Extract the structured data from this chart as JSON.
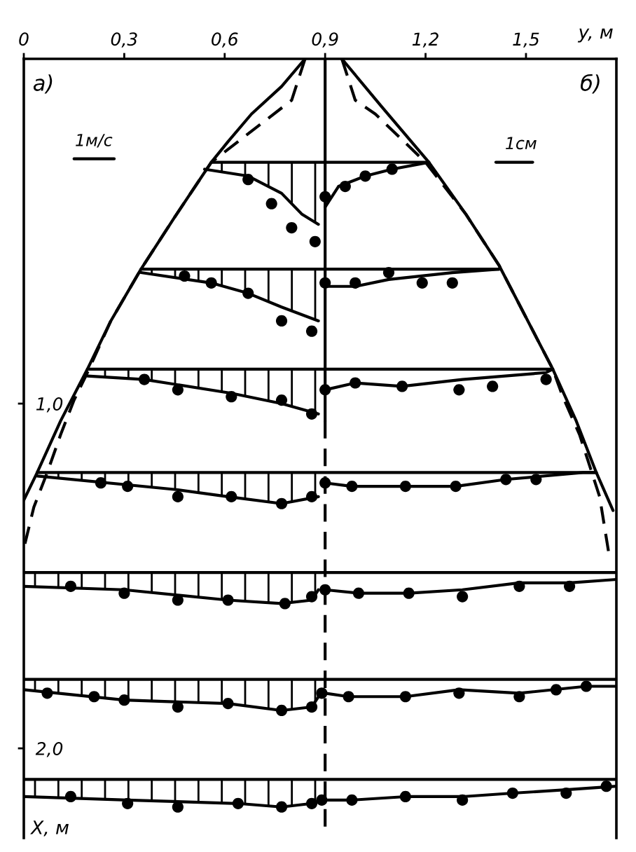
{
  "chart_data": {
    "type": "line",
    "xlabel": "y, м",
    "ylabel": "X, м",
    "xlim": [
      0,
      1.77
    ],
    "ylim": [
      2.26,
      0
    ],
    "xticks": [
      0,
      {
        "value": 0.3,
        "label": "0,3"
      },
      {
        "value": 0.6,
        "label": "0,6"
      },
      {
        "value": 0.9,
        "label": "0,9"
      },
      {
        "value": 1.2,
        "label": "1,2"
      },
      {
        "value": 1.5,
        "label": "1,5"
      }
    ],
    "yticks": [
      {
        "value": 1.0,
        "label": "1,0"
      },
      {
        "value": 2.0,
        "label": "2,0"
      }
    ],
    "annotations": [
      "а)",
      "б)",
      "1м/с",
      "1см"
    ],
    "series": [
      {
        "color": "#000000",
        "x": [
          0.84,
          0.77,
          0.68,
          0.61,
          0.56,
          0.45,
          0.35,
          0.26,
          0.19,
          0.11,
          0.04,
          0.0
        ],
        "values": [
          0.0,
          0.08,
          0.16,
          0.24,
          0.3,
          0.46,
          0.61,
          0.76,
          0.9,
          1.05,
          1.2,
          1.28
        ]
      },
      {
        "color": "#000000",
        "x": [
          0.95,
          1.07,
          1.21,
          1.32,
          1.42,
          1.5,
          1.58,
          1.65,
          1.71,
          1.76
        ],
        "values": [
          0.0,
          0.14,
          0.3,
          0.45,
          0.6,
          0.75,
          0.9,
          1.05,
          1.2,
          1.31
        ]
      },
      {
        "color": "#000000",
        "line_style": "dashed",
        "x": [
          0.84,
          0.8,
          0.56,
          0.45,
          0.35,
          0.26,
          0.19,
          0.15,
          0.11,
          0.07,
          0.03,
          0.0
        ],
        "values": [
          0.0,
          0.12,
          0.3,
          0.46,
          0.61,
          0.76,
          0.91,
          0.99,
          1.09,
          1.2,
          1.3,
          1.42
        ]
      },
      {
        "color": "#000000",
        "line_style": "dashed",
        "x": [
          0.95,
          0.99,
          1.05,
          1.2,
          1.32,
          1.42,
          1.5,
          1.58,
          1.61,
          1.66,
          1.72,
          1.75
        ],
        "values": [
          0.0,
          0.12,
          0.16,
          0.3,
          0.45,
          0.6,
          0.75,
          0.9,
          0.98,
          1.09,
          1.27,
          1.45
        ]
      },
      {
        "color": "#000000",
        "x": [
          0.9,
          0.9
        ],
        "values": [
          0.0,
          1.05
        ]
      },
      {
        "color": "#000000",
        "line_style": "dashed",
        "x": [
          0.9,
          0.9
        ],
        "values": [
          1.05,
          2.24
        ]
      },
      {
        "color": "#000000",
        "x": [
          0.56,
          1.21
        ],
        "values": [
          0.3,
          0.3
        ]
      },
      {
        "color": "#000000",
        "x": [
          0.35,
          1.42
        ],
        "values": [
          0.61,
          0.61
        ]
      },
      {
        "color": "#000000",
        "x": [
          0.19,
          1.58
        ],
        "values": [
          0.9,
          0.9
        ]
      },
      {
        "color": "#000000",
        "x": [
          0.04,
          1.71
        ],
        "values": [
          1.2,
          1.2
        ]
      },
      {
        "color": "#000000",
        "x": [
          0.0,
          1.77
        ],
        "values": [
          1.49,
          1.49
        ]
      },
      {
        "color": "#000000",
        "x": [
          0.0,
          1.77
        ],
        "values": [
          1.8,
          1.8
        ]
      },
      {
        "color": "#000000",
        "x": [
          0.0,
          1.77
        ],
        "values": [
          2.09,
          2.09
        ]
      },
      {
        "color": "#000000",
        "x": [
          0.54,
          0.67,
          0.77,
          0.83,
          0.88
        ],
        "values": [
          0.32,
          0.34,
          0.39,
          0.45,
          0.48
        ],
        "lower": [
          0.3,
          0.3,
          0.3,
          0.3,
          0.3
        ],
        "upper": [
          0.32,
          0.34,
          0.39,
          0.45,
          0.48
        ]
      },
      {
        "color": "#000000",
        "x": [
          0.35,
          0.56,
          0.67,
          0.77,
          0.88
        ],
        "values": [
          0.62,
          0.65,
          0.68,
          0.72,
          0.76
        ],
        "lower": [
          0.61,
          0.61,
          0.61,
          0.61,
          0.61
        ],
        "upper": [
          0.62,
          0.65,
          0.68,
          0.72,
          0.76
        ]
      },
      {
        "color": "#000000",
        "x": [
          0.19,
          0.36,
          0.62,
          0.77,
          0.88
        ],
        "values": [
          0.92,
          0.93,
          0.97,
          1.0,
          1.03
        ],
        "lower": [
          0.9,
          0.9,
          0.9,
          0.9,
          0.9
        ],
        "upper": [
          0.92,
          0.93,
          0.97,
          1.0,
          1.03
        ]
      },
      {
        "color": "#000000",
        "x": [
          0.04,
          0.46,
          0.61,
          0.77,
          0.88
        ],
        "values": [
          1.21,
          1.25,
          1.27,
          1.29,
          1.27
        ],
        "lower": [
          1.2,
          1.2,
          1.2,
          1.2,
          1.2
        ],
        "upper": [
          1.21,
          1.25,
          1.27,
          1.29,
          1.27
        ]
      },
      {
        "color": "#000000",
        "x": [
          0.0,
          0.3,
          0.61,
          0.77,
          0.86,
          0.88
        ],
        "values": [
          1.53,
          1.54,
          1.57,
          1.58,
          1.57,
          1.54
        ],
        "lower": [
          1.49,
          1.49,
          1.49,
          1.49,
          1.49,
          1.49
        ],
        "upper": [
          1.53,
          1.54,
          1.57,
          1.58,
          1.57,
          1.54
        ]
      },
      {
        "color": "#000000",
        "x": [
          0.0,
          0.3,
          0.61,
          0.77,
          0.86,
          0.88
        ],
        "values": [
          1.83,
          1.86,
          1.87,
          1.89,
          1.88,
          1.85
        ],
        "lower": [
          1.8,
          1.8,
          1.8,
          1.8,
          1.8,
          1.8
        ],
        "upper": [
          1.83,
          1.86,
          1.87,
          1.89,
          1.88,
          1.85
        ]
      },
      {
        "color": "#000000",
        "x": [
          0.0,
          0.31,
          0.64,
          0.77,
          0.86,
          0.89
        ],
        "values": [
          2.14,
          2.15,
          2.16,
          2.17,
          2.16,
          2.15
        ],
        "lower": [
          2.09,
          2.09,
          2.09,
          2.09,
          2.09,
          2.09
        ],
        "upper": [
          2.14,
          2.15,
          2.16,
          2.17,
          2.16,
          2.15
        ]
      },
      {
        "color": "#000000",
        "x": [
          0.9,
          0.94,
          1.02,
          1.1,
          1.21
        ],
        "values": [
          0.43,
          0.37,
          0.34,
          0.32,
          0.3
        ]
      },
      {
        "color": "#000000",
        "x": [
          0.9,
          0.99,
          1.09,
          1.28,
          1.42
        ],
        "values": [
          0.66,
          0.66,
          0.64,
          0.62,
          0.61
        ]
      },
      {
        "color": "#000000",
        "x": [
          0.9,
          0.99,
          1.13,
          1.31,
          1.56,
          1.58
        ],
        "values": [
          0.96,
          0.94,
          0.95,
          0.93,
          0.91,
          0.9
        ]
      },
      {
        "color": "#000000",
        "x": [
          0.9,
          0.98,
          1.14,
          1.29,
          1.44,
          1.67,
          1.71
        ],
        "values": [
          1.23,
          1.24,
          1.24,
          1.24,
          1.22,
          1.2,
          1.2
        ]
      },
      {
        "color": "#000000",
        "x": [
          0.9,
          1.0,
          1.15,
          1.31,
          1.48,
          1.63,
          1.77
        ],
        "values": [
          1.54,
          1.55,
          1.55,
          1.54,
          1.52,
          1.52,
          1.51
        ]
      },
      {
        "color": "#000000",
        "x": [
          0.9,
          0.97,
          1.14,
          1.3,
          1.48,
          1.68,
          1.77
        ],
        "values": [
          1.84,
          1.85,
          1.85,
          1.83,
          1.84,
          1.82,
          1.82
        ]
      },
      {
        "color": "#000000",
        "x": [
          0.9,
          0.98,
          1.14,
          1.31,
          1.46,
          1.62,
          1.77
        ],
        "values": [
          2.15,
          2.15,
          2.14,
          2.14,
          2.13,
          2.12,
          2.11
        ]
      },
      {
        "color": "#000000",
        "x": [
          0.15,
          0.27
        ],
        "values": [
          0.29,
          0.29
        ]
      },
      {
        "color": "#000000",
        "x": [
          1.41,
          1.52
        ],
        "values": [
          0.3,
          0.3
        ]
      },
      {
        "type": "scatter",
        "color": "#000000",
        "marker": "circle",
        "x": [
          0.67,
          0.74,
          0.8,
          0.87,
          0.9,
          0.96,
          1.02,
          1.1,
          0.48,
          0.56,
          0.67,
          0.77,
          0.86,
          0.9,
          0.99,
          1.09,
          1.19,
          1.28,
          0.36,
          0.46,
          0.62,
          0.77,
          0.86,
          0.9,
          0.99,
          1.13,
          1.3,
          1.4,
          1.56,
          0.23,
          0.31,
          0.46,
          0.62,
          0.77,
          0.86,
          0.9,
          0.98,
          1.14,
          1.29,
          1.44,
          1.53,
          0.14,
          0.3,
          0.46,
          0.61,
          0.78,
          0.86,
          0.9,
          1.0,
          1.15,
          1.31,
          1.48,
          1.63,
          0.07,
          0.21,
          0.3,
          0.46,
          0.61,
          0.77,
          0.86,
          0.89,
          0.97,
          1.14,
          1.3,
          1.48,
          1.59,
          1.68,
          0.14,
          0.31,
          0.46,
          0.64,
          0.77,
          0.86,
          0.89,
          0.98,
          1.14,
          1.31,
          1.46,
          1.62,
          1.74
        ],
        "values": [
          0.35,
          0.42,
          0.49,
          0.53,
          0.4,
          0.37,
          0.34,
          0.32,
          0.63,
          0.65,
          0.68,
          0.76,
          0.79,
          0.65,
          0.65,
          0.62,
          0.65,
          0.65,
          0.93,
          0.96,
          0.98,
          0.99,
          1.03,
          0.96,
          0.94,
          0.95,
          0.96,
          0.95,
          0.93,
          1.23,
          1.24,
          1.27,
          1.27,
          1.29,
          1.27,
          1.23,
          1.24,
          1.24,
          1.24,
          1.22,
          1.22,
          1.53,
          1.55,
          1.57,
          1.57,
          1.58,
          1.56,
          1.54,
          1.55,
          1.55,
          1.56,
          1.53,
          1.53,
          1.84,
          1.85,
          1.86,
          1.88,
          1.87,
          1.89,
          1.88,
          1.84,
          1.85,
          1.85,
          1.84,
          1.85,
          1.83,
          1.82,
          2.14,
          2.16,
          2.17,
          2.16,
          2.17,
          2.16,
          2.15,
          2.15,
          2.14,
          2.15,
          2.13,
          2.13,
          2.11
        ]
      }
    ]
  }
}
